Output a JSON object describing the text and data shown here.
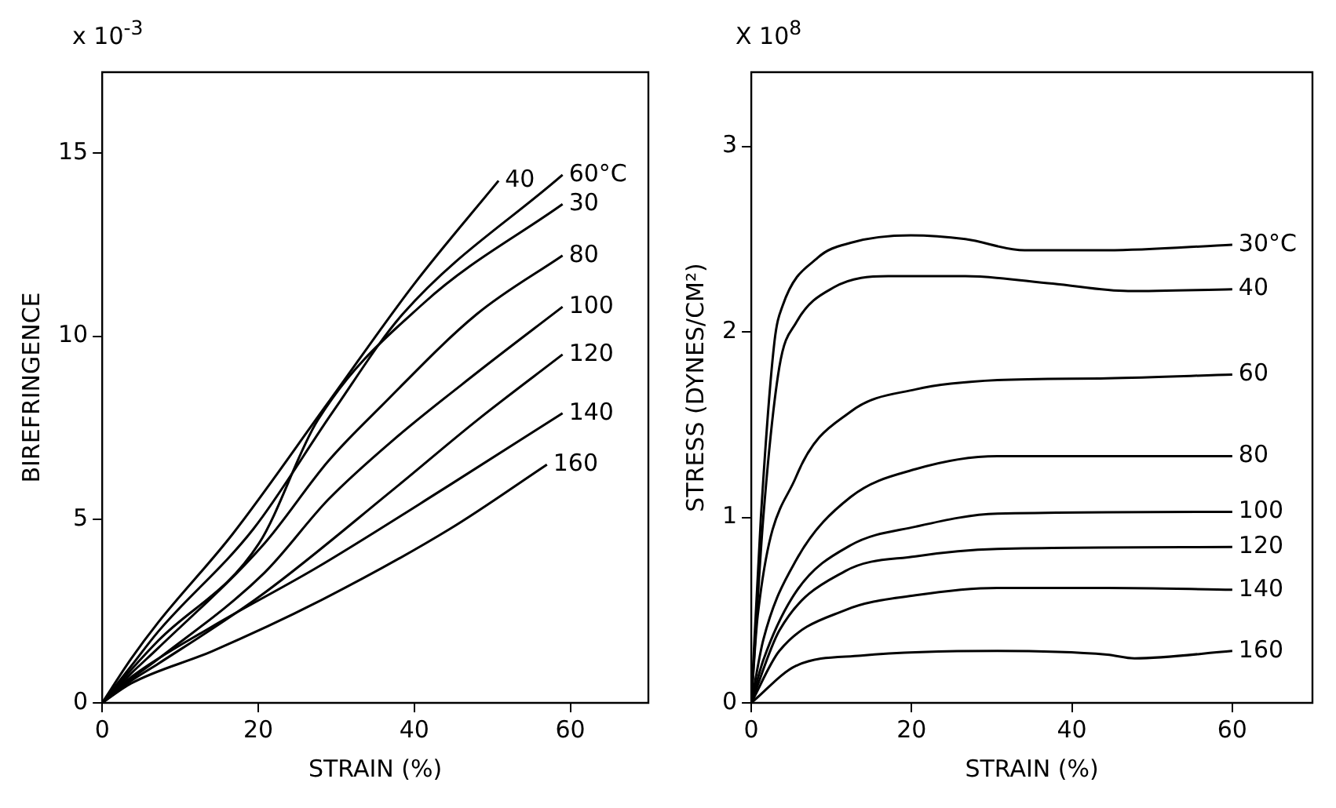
{
  "chart_data": [
    {
      "type": "line",
      "xlabel": "STRAIN (%)",
      "ylabel": "BIREFRINGENCE",
      "annotations": [
        "x 10$^{-3}$"
      ],
      "xlim": [
        0,
        70
      ],
      "ylim": [
        0,
        17.2
      ],
      "xticks": [
        0,
        20,
        40,
        60
      ],
      "yticks": [
        0,
        5,
        10,
        15
      ],
      "grid": false,
      "legend": false,
      "marker": "none",
      "line_style": "solid",
      "series": [
        {
          "name": "40",
          "color": "#000000",
          "x": [
            0,
            3.7,
            7.2,
            16.7,
            29,
            39.9,
            50.8
          ],
          "values": [
            0,
            1.2,
            2.2,
            4.6,
            8.2,
            11.4,
            14.24
          ]
        },
        {
          "name": "60°C",
          "color": "#000000",
          "x": [
            0,
            3.7,
            7.2,
            19.4,
            29.6,
            38.5,
            59
          ],
          "values": [
            0,
            1.0,
            1.95,
            4.75,
            7.95,
            10.6,
            14.4
          ]
        },
        {
          "name": "30",
          "color": "#000000",
          "x": [
            0,
            3.7,
            7.2,
            20.1,
            27.6,
            41.2,
            59
          ],
          "values": [
            0,
            0.9,
            1.7,
            4.35,
            7.7,
            10.9,
            13.6
          ]
        },
        {
          "name": "80",
          "color": "#000000",
          "x": [
            0,
            3.7,
            7.2,
            20.8,
            29,
            35.8,
            48,
            59
          ],
          "values": [
            0,
            0.8,
            1.5,
            4.35,
            6.6,
            8.1,
            10.6,
            12.2
          ]
        },
        {
          "name": "100",
          "color": "#000000",
          "x": [
            0,
            3.7,
            7.2,
            20.8,
            29,
            37.2,
            48,
            59
          ],
          "values": [
            0,
            0.65,
            1.2,
            3.55,
            5.55,
            7.15,
            9.0,
            10.8
          ]
        },
        {
          "name": "120",
          "color": "#000000",
          "x": [
            0,
            3.7,
            7.2,
            20.8,
            37.2,
            48,
            59
          ],
          "values": [
            0,
            0.6,
            1.07,
            3.0,
            5.8,
            7.7,
            9.5
          ]
        },
        {
          "name": "140",
          "color": "#000000",
          "x": [
            0,
            3.7,
            14,
            27.6,
            44.6,
            59
          ],
          "values": [
            0,
            0.7,
            2.07,
            3.7,
            5.95,
            7.9
          ]
        },
        {
          "name": "160",
          "color": "#000000",
          "x": [
            0,
            3.7,
            14,
            27.6,
            44.6,
            57
          ],
          "values": [
            0,
            0.53,
            1.4,
            2.75,
            4.75,
            6.5
          ]
        }
      ]
    },
    {
      "type": "line",
      "xlabel": "STRAIN (%)",
      "ylabel": "STRESS (DYNES/CM²)",
      "annotations": [
        "X 10$^{8}$"
      ],
      "xlim": [
        0,
        70
      ],
      "ylim": [
        0,
        3.4
      ],
      "xticks": [
        0,
        20,
        40,
        60
      ],
      "yticks": [
        0,
        1,
        2,
        3
      ],
      "grid": false,
      "legend": false,
      "marker": "none",
      "line_style": "solid",
      "series": [
        {
          "name": "30°C",
          "color": "#000000",
          "x": [
            0,
            1.2,
            2.9,
            3.9,
            8.3,
            12.4,
            19.9,
            26.7,
            34.1,
            44.4,
            60
          ],
          "values": [
            0,
            1.0,
            1.95,
            2.14,
            2.4,
            2.48,
            2.52,
            2.5,
            2.44,
            2.44,
            2.47
          ]
        },
        {
          "name": "40",
          "color": "#000000",
          "x": [
            0,
            1.5,
            3.5,
            5.6,
            10.3,
            17.1,
            26.7,
            37.6,
            47,
            60
          ],
          "values": [
            0,
            1.0,
            1.81,
            2.05,
            2.24,
            2.3,
            2.3,
            2.26,
            2.22,
            2.23
          ]
        },
        {
          "name": "60",
          "color": "#000000",
          "x": [
            0,
            0.8,
            5.6,
            12.4,
            20.5,
            30.7,
            44.4,
            60
          ],
          "values": [
            0,
            0.47,
            1.22,
            1.57,
            1.69,
            1.74,
            1.75,
            1.77
          ]
        },
        {
          "name": "80",
          "color": "#000000",
          "x": [
            0,
            1.5,
            5.6,
            12.4,
            20.5,
            30.7,
            60
          ],
          "values": [
            0,
            0.34,
            0.77,
            1.11,
            1.26,
            1.33,
            1.33
          ]
        },
        {
          "name": "100",
          "color": "#000000",
          "x": [
            0,
            1.5,
            5.6,
            12.4,
            20.5,
            30.7,
            60
          ],
          "values": [
            0,
            0.23,
            0.6,
            0.85,
            0.95,
            1.02,
            1.03
          ]
        },
        {
          "name": "120",
          "color": "#000000",
          "x": [
            0,
            3.5,
            11.7,
            20.5,
            30.7,
            60
          ],
          "values": [
            0,
            0.39,
            0.71,
            0.79,
            0.83,
            0.84
          ]
        },
        {
          "name": "140",
          "color": "#000000",
          "x": [
            0,
            3.5,
            11.7,
            20.5,
            30.7,
            44.4,
            60
          ],
          "values": [
            0,
            0.28,
            0.5,
            0.58,
            0.62,
            0.62,
            0.61
          ]
        },
        {
          "name": "160",
          "color": "#000000",
          "x": [
            0,
            5.6,
            13.7,
            30.7,
            44.4,
            47.8,
            60
          ],
          "values": [
            0,
            0.2,
            0.255,
            0.28,
            0.26,
            0.24,
            0.28
          ]
        }
      ]
    }
  ]
}
